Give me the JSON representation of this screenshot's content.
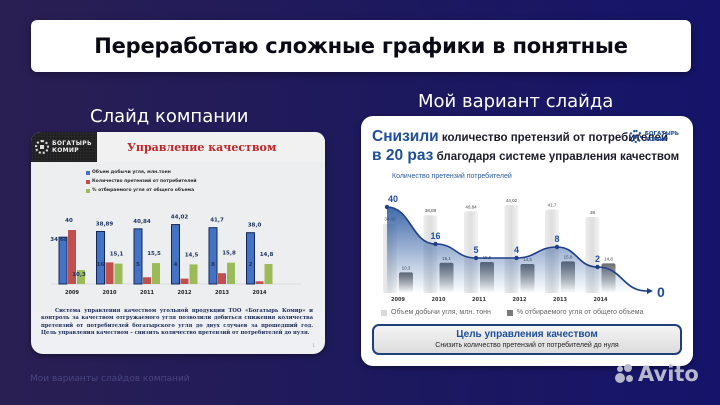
{
  "banner": {
    "title": "Переработаю сложные графики в понятные"
  },
  "labels": {
    "left": "Слайд компании",
    "right": "Мой вариант слайда"
  },
  "left_slide": {
    "logo": [
      "БОГАТЫРЬ",
      "КОМИР"
    ],
    "title": "Управление качеством",
    "legend": [
      {
        "label": "Объем добычи угля, млн.тонн",
        "color": "#4472c4"
      },
      {
        "label": "Количество претензий от потребителей",
        "color": "#c0504d"
      },
      {
        "label": "% отбираемого угля от общего объема",
        "color": "#9bbb59"
      }
    ],
    "text": "Система управления качеством угольной продукции ТОО «Богатырь Комир» и контроль за качеством отгружаемого угля позволили добиться снижения количества претензий от потребителей богатырского угля до двух случаев за прошедший год. Цель управления качеством – снизить количество претензий от потребителей до нуля.",
    "page": "1"
  },
  "right_slide": {
    "head": {
      "line1_big": "Снизили",
      "line1_small": " количество претензий от потребителей",
      "line2_big": "в 20 раз",
      "line2_small": " благодаря системе управления качеством"
    },
    "logo": [
      "БОГАТЫРЬ",
      "КОМИР"
    ],
    "chart_title": "Количество претензий потребителей",
    "target_label": "0",
    "legend": [
      {
        "label": "Объем добычи угля, млн. тонн",
        "color": "#d9d9d9"
      },
      {
        "label": "% отбираемого угля от общего объема",
        "color": "#7a7a7a"
      }
    ],
    "goal": {
      "title": "Цель управления качеством",
      "subtitle": "Снизить количество претензий от потребителей до нуля"
    }
  },
  "chart_data": [
    {
      "type": "bar",
      "title": "Управление качеством",
      "categories": [
        "2009",
        "2010",
        "2011",
        "2012",
        "2013",
        "2014"
      ],
      "series": [
        {
          "name": "Объем добычи угля, млн.тонн",
          "values": [
            34.68,
            38.89,
            40.84,
            44.02,
            41.7,
            38.0
          ],
          "labels": [
            "34,68",
            "38,89",
            "40,84",
            "44,02",
            "41,7",
            "38,0"
          ]
        },
        {
          "name": "Количество претензий от потребителей",
          "values": [
            40,
            16,
            5,
            4,
            8,
            2
          ],
          "labels": [
            "40",
            "16",
            "5",
            "4",
            "8",
            "2"
          ]
        },
        {
          "name": "% отбираемого угля от общего объема",
          "values": [
            10.3,
            15.1,
            15.5,
            14.5,
            15.8,
            14.8
          ],
          "labels": [
            "10,3",
            "15,1",
            "15,5",
            "14,5",
            "15,8",
            "14,8"
          ]
        }
      ],
      "legend_position": "top"
    },
    {
      "type": "bar",
      "title": "Количество претензий потребителей",
      "categories": [
        "2009",
        "2010",
        "2011",
        "2012",
        "2013",
        "2014"
      ],
      "series": [
        {
          "name": "Объем добычи угля, млн. тонн",
          "values": [
            34.68,
            38.89,
            40.84,
            44.02,
            41.7,
            38
          ],
          "labels": [
            "34,68",
            "38,89",
            "40,84",
            "44,02",
            "41,7",
            "38"
          ]
        },
        {
          "name": "% отбираемого угля от общего объема",
          "values": [
            10.3,
            15.1,
            15.5,
            14.5,
            15.8,
            14.8
          ],
          "labels": [
            "10,3",
            "15,1",
            "15,5",
            "14,5",
            "15,8",
            "14,8"
          ]
        },
        {
          "name": "Количество претензий потребителей",
          "type": "line",
          "values": [
            40,
            16,
            5,
            4,
            8,
            2
          ],
          "labels": [
            "40",
            "16",
            "5",
            "4",
            "8",
            "2"
          ],
          "target": 0
        }
      ],
      "legend_position": "bottom"
    }
  ],
  "footer": {
    "caption": "Мои варианты слайдов компаний",
    "brand": "Avito"
  }
}
